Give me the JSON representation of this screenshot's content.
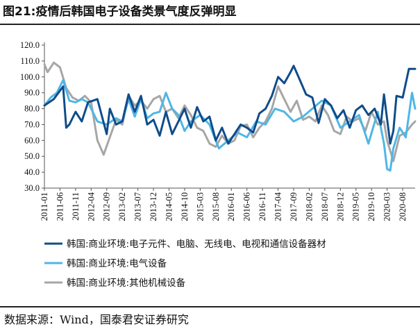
{
  "title": "图21:疫情后韩国电子设备类景气度反弹明显",
  "source": "数据来源：Wind，国泰君安证券研究",
  "colors": {
    "series1": "#0f4c8a",
    "series2": "#4fb6e6",
    "series3": "#a6a6a6"
  },
  "chart_data": {
    "type": "line",
    "ylim": [
      30,
      120
    ],
    "yticks": [
      "30.0",
      "40.0",
      "50.0",
      "60.0",
      "70.0",
      "80.0",
      "90.0",
      "100.0",
      "110.0",
      "120.0"
    ],
    "xlim": [
      "2011-01",
      "2020-12"
    ],
    "xticks": [
      "2011-01",
      "2011-06",
      "2011-11",
      "2012-04",
      "2012-09",
      "2013-02",
      "2013-07",
      "2013-12",
      "2014-05",
      "2014-10",
      "2015-03",
      "2015-08",
      "2016-01",
      "2016-06",
      "2016-11",
      "2017-04",
      "2017-09",
      "2018-02",
      "2018-07",
      "2018-12",
      "2019-05",
      "2019-10",
      "2020-03",
      "2020-08"
    ],
    "legend_position": "bottom",
    "series": [
      {
        "name": "韩国:商业环境:电子元件、电脑、无线电、电视和通信设备器材",
        "x": [
          "2011-01",
          "2011-04",
          "2011-07",
          "2011-08",
          "2011-09",
          "2011-11",
          "2012-01",
          "2012-03",
          "2012-06",
          "2012-09",
          "2012-10",
          "2012-12",
          "2013-02",
          "2013-04",
          "2013-06",
          "2013-08",
          "2013-10",
          "2013-12",
          "2014-02",
          "2014-04",
          "2014-06",
          "2014-08",
          "2014-10",
          "2014-12",
          "2015-02",
          "2015-04",
          "2015-06",
          "2015-08",
          "2015-10",
          "2015-12",
          "2016-02",
          "2016-04",
          "2016-06",
          "2016-08",
          "2016-10",
          "2016-12",
          "2017-02",
          "2017-04",
          "2017-06",
          "2017-08",
          "2017-09",
          "2017-11",
          "2018-01",
          "2018-03",
          "2018-05",
          "2018-07",
          "2018-09",
          "2018-11",
          "2019-01",
          "2019-03",
          "2019-05",
          "2019-07",
          "2019-09",
          "2019-11",
          "2020-01",
          "2020-02",
          "2020-04",
          "2020-05",
          "2020-06",
          "2020-08",
          "2020-10",
          "2020-12"
        ],
        "y": [
          82,
          86,
          94,
          68,
          70,
          78,
          72,
          84,
          86,
          64,
          80,
          70,
          72,
          89,
          78,
          88,
          70,
          73,
          63,
          78,
          64,
          72,
          80,
          68,
          81,
          72,
          75,
          60,
          68,
          58,
          64,
          70,
          68,
          65,
          77,
          80,
          88,
          100,
          96,
          103,
          107,
          98,
          89,
          87,
          71,
          86,
          82,
          74,
          79,
          68,
          79,
          82,
          76,
          80,
          70,
          89,
          58,
          66,
          88,
          87,
          105,
          105
        ]
      },
      {
        "name": "韩国:商业环境:电气设备",
        "x": [
          "2011-01",
          "2011-03",
          "2011-05",
          "2011-07",
          "2011-09",
          "2011-11",
          "2012-01",
          "2012-03",
          "2012-06",
          "2012-09",
          "2012-12",
          "2013-02",
          "2013-04",
          "2013-06",
          "2013-08",
          "2013-10",
          "2013-12",
          "2014-02",
          "2014-04",
          "2014-06",
          "2014-08",
          "2014-10",
          "2014-12",
          "2015-03",
          "2015-06",
          "2015-09",
          "2015-12",
          "2016-03",
          "2016-06",
          "2016-09",
          "2016-12",
          "2017-03",
          "2017-06",
          "2017-09",
          "2017-12",
          "2018-03",
          "2018-06",
          "2018-09",
          "2018-12",
          "2019-03",
          "2019-06",
          "2019-09",
          "2019-12",
          "2020-02",
          "2020-03",
          "2020-04",
          "2020-05",
          "2020-07",
          "2020-09",
          "2020-11",
          "2020-12"
        ],
        "y": [
          82,
          87,
          90,
          98,
          85,
          84,
          86,
          84,
          72,
          70,
          74,
          72,
          86,
          75,
          86,
          74,
          77,
          78,
          90,
          80,
          76,
          66,
          72,
          76,
          70,
          55,
          60,
          65,
          62,
          72,
          70,
          80,
          78,
          72,
          75,
          80,
          85,
          82,
          68,
          72,
          76,
          58,
          78,
          58,
          42,
          41,
          55,
          68,
          62,
          90,
          80
        ]
      },
      {
        "name": "韩国:商业环境:其他机械设备",
        "x": [
          "2011-01",
          "2011-02",
          "2011-04",
          "2011-06",
          "2011-08",
          "2011-10",
          "2011-12",
          "2012-02",
          "2012-04",
          "2012-06",
          "2012-08",
          "2012-10",
          "2012-12",
          "2013-02",
          "2013-04",
          "2013-06",
          "2013-08",
          "2013-10",
          "2013-12",
          "2014-02",
          "2014-04",
          "2014-06",
          "2014-08",
          "2014-10",
          "2014-12",
          "2015-02",
          "2015-04",
          "2015-06",
          "2015-08",
          "2015-10",
          "2015-12",
          "2016-02",
          "2016-04",
          "2016-06",
          "2016-08",
          "2016-10",
          "2016-12",
          "2017-02",
          "2017-04",
          "2017-06",
          "2017-08",
          "2017-10",
          "2017-12",
          "2018-02",
          "2018-04",
          "2018-06",
          "2018-08",
          "2018-10",
          "2018-12",
          "2019-02",
          "2019-04",
          "2019-06",
          "2019-08",
          "2019-10",
          "2019-12",
          "2020-02",
          "2020-03",
          "2020-05",
          "2020-07",
          "2020-09",
          "2020-11",
          "2020-12"
        ],
        "y": [
          108,
          103,
          109,
          106,
          93,
          87,
          85,
          88,
          84,
          60,
          51,
          62,
          73,
          70,
          88,
          82,
          85,
          80,
          86,
          88,
          78,
          80,
          74,
          82,
          76,
          68,
          66,
          58,
          56,
          63,
          58,
          60,
          69,
          70,
          62,
          68,
          72,
          80,
          94,
          86,
          78,
          85,
          73,
          75,
          72,
          82,
          76,
          66,
          64,
          75,
          72,
          74,
          66,
          78,
          70,
          72,
          60,
          47,
          63,
          65,
          70,
          72
        ]
      }
    ]
  }
}
